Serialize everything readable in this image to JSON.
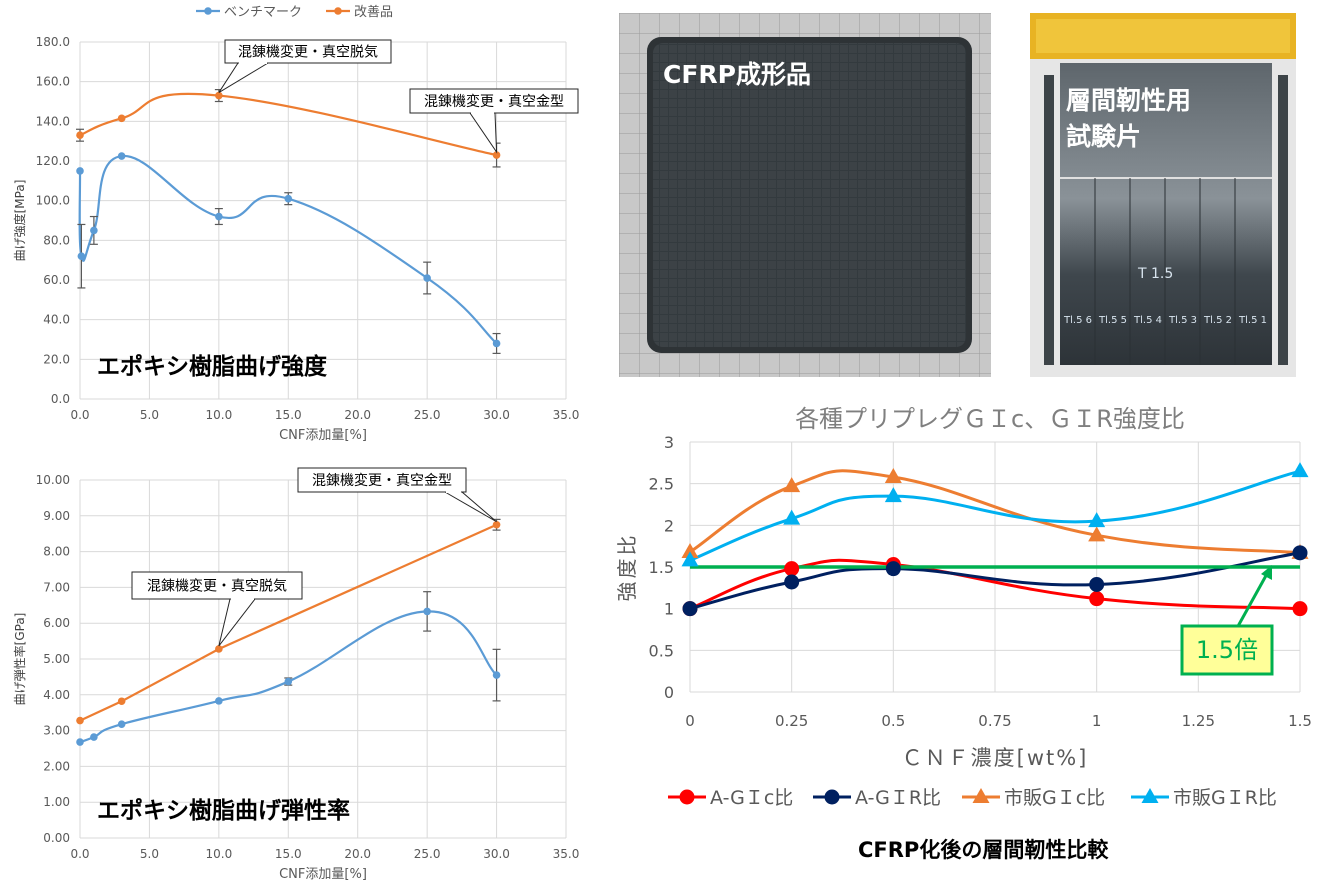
{
  "colors": {
    "benchmark": "#5b9bd5",
    "improved": "#ed7d31",
    "red": "#ff0000",
    "navy": "#002060",
    "orange": "#ed7d31",
    "cyan": "#00b0f0",
    "green": "#00b050",
    "grid": "#d9d9d9",
    "callout_fill": "#ffff99"
  },
  "photos": {
    "left": {
      "label": "CFRP成形品"
    },
    "right": {
      "label_line1": "層間靭性用",
      "label_line2": "試験片",
      "handwriting": [
        "T 1.5",
        "Tl.5 6",
        "Tl.5 5",
        "Tl.5 4",
        "Tl.5 3",
        "Tl.5 2",
        "Tl.5 1"
      ]
    }
  },
  "caption_bottom_right": "CFRP化後の層間靭性比較",
  "chart_data": [
    {
      "id": "strength",
      "type": "line",
      "xlabel": "CNF添加量[%]",
      "ylabel": "曲げ強度[MPa]",
      "overlay_title": "エポキシ樹脂曲げ強度",
      "xlim": [
        0,
        35
      ],
      "ylim": [
        0,
        180
      ],
      "x_ticks": [
        "0.0",
        "5.0",
        "10.0",
        "15.0",
        "20.0",
        "25.0",
        "30.0",
        "35.0"
      ],
      "y_ticks": [
        "0.0",
        "20.0",
        "40.0",
        "60.0",
        "80.0",
        "100.0",
        "120.0",
        "140.0",
        "160.0",
        "180.0"
      ],
      "legend": {
        "position": "top"
      },
      "series": [
        {
          "name": "ベンチマーク",
          "color_key": "benchmark",
          "x": [
            0,
            0.1,
            1,
            3,
            10,
            15,
            25,
            30
          ],
          "y": [
            115,
            72,
            85,
            122.5,
            92,
            101,
            61,
            28
          ],
          "err": [
            0,
            16,
            7,
            0,
            4,
            3,
            8,
            5
          ]
        },
        {
          "name": "改善品",
          "color_key": "improved",
          "x": [
            0,
            3,
            10,
            30
          ],
          "y": [
            133,
            141.5,
            153,
            123
          ],
          "err": [
            3,
            0,
            3,
            6
          ]
        }
      ],
      "annotations": [
        {
          "text": "混錬機変更・真空脱気",
          "point": [
            10,
            153
          ]
        },
        {
          "text": "混錬機変更・真空金型",
          "point": [
            30,
            123
          ]
        }
      ]
    },
    {
      "id": "modulus",
      "type": "line",
      "xlabel": "CNF添加量[%]",
      "ylabel": "曲げ弾性率[GPa]",
      "overlay_title": "エポキシ樹脂曲げ弾性率",
      "xlim": [
        0,
        35
      ],
      "ylim": [
        0,
        10
      ],
      "x_ticks": [
        "0.0",
        "5.0",
        "10.0",
        "15.0",
        "20.0",
        "25.0",
        "30.0",
        "35.0"
      ],
      "y_ticks": [
        "0.00",
        "1.00",
        "2.00",
        "3.00",
        "4.00",
        "5.00",
        "6.00",
        "7.00",
        "8.00",
        "9.00",
        "10.00"
      ],
      "series": [
        {
          "name": "ベンチマーク",
          "color_key": "benchmark",
          "x": [
            0,
            1,
            3,
            10,
            15,
            25,
            30
          ],
          "y": [
            2.68,
            2.82,
            3.18,
            3.83,
            4.37,
            6.33,
            4.55
          ],
          "err": [
            0,
            0,
            0,
            0,
            0.1,
            0.55,
            0.72
          ]
        },
        {
          "name": "改善品",
          "color_key": "improved",
          "x": [
            0,
            3,
            10,
            30
          ],
          "y": [
            3.28,
            3.82,
            5.28,
            8.75
          ],
          "err": [
            0,
            0,
            0,
            0.15
          ]
        }
      ],
      "annotations": [
        {
          "text": "混錬機変更・真空金型",
          "point": [
            30,
            8.75
          ]
        },
        {
          "text": "混錬機変更・真空脱気",
          "point": [
            10,
            5.28
          ]
        }
      ]
    },
    {
      "id": "toughness",
      "type": "line",
      "title": "各種プリプレグＧＩc、ＧＩR強度比",
      "xlabel": "ＣＮＦ濃度[wt%]",
      "ylabel": "強度比",
      "xlim": [
        0,
        1.5
      ],
      "ylim": [
        0,
        3
      ],
      "x_ticks": [
        "0",
        "0.25",
        "0.5",
        "0.75",
        "1",
        "1.25",
        "1.5"
      ],
      "y_ticks": [
        "0",
        "0.5",
        "1",
        "1.5",
        "2",
        "2.5",
        "3"
      ],
      "legend": {
        "position": "bottom"
      },
      "reference_line": {
        "y": 1.5,
        "label": "1.5倍",
        "color_key": "green"
      },
      "series": [
        {
          "name": "A-GＩc比",
          "color_key": "red",
          "marker": "circle",
          "x": [
            0,
            0.25,
            0.5,
            1,
            1.5
          ],
          "y": [
            1.0,
            1.48,
            1.53,
            1.12,
            1.0
          ]
        },
        {
          "name": "A-GＩR比",
          "color_key": "navy",
          "marker": "circle",
          "x": [
            0,
            0.25,
            0.5,
            1,
            1.5
          ],
          "y": [
            1.0,
            1.32,
            1.48,
            1.29,
            1.67
          ]
        },
        {
          "name": "市販GＩc比",
          "color_key": "orange",
          "marker": "triangle",
          "x": [
            0,
            0.25,
            0.5,
            1,
            1.5
          ],
          "y": [
            1.68,
            2.47,
            2.58,
            1.88,
            1.67
          ]
        },
        {
          "name": "市販GＩR比",
          "color_key": "cyan",
          "marker": "triangle",
          "x": [
            0,
            0.25,
            0.5,
            1,
            1.5
          ],
          "y": [
            1.58,
            2.08,
            2.35,
            2.05,
            2.65
          ]
        }
      ]
    }
  ]
}
